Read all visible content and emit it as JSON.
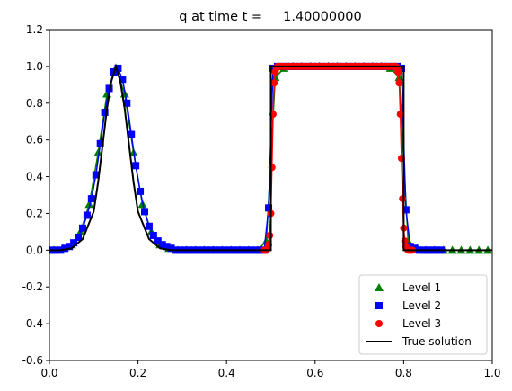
{
  "chart_data": {
    "type": "line",
    "title": "q at time t =     1.40000000",
    "xlabel": "",
    "ylabel": "",
    "xlim": [
      0,
      1.0
    ],
    "ylim": [
      -0.6,
      1.2
    ],
    "xticks": [
      "0.0",
      "0.2",
      "0.4",
      "0.6",
      "0.8",
      "1.0"
    ],
    "yticks": [
      "-0.6",
      "-0.4",
      "-0.2",
      "0.0",
      "0.2",
      "0.4",
      "0.6",
      "0.8",
      "1.0",
      "1.2"
    ],
    "grid": false,
    "legend_position": "lower-right",
    "series": [
      {
        "name": "Level 1",
        "marker": "triangle",
        "color": "#008000",
        "x": [
          0.01,
          0.03,
          0.05,
          0.07,
          0.09,
          0.11,
          0.13,
          0.15,
          0.17,
          0.19,
          0.21,
          0.23,
          0.25,
          0.27,
          0.29,
          0.31,
          0.33,
          0.35,
          0.37,
          0.39,
          0.41,
          0.43,
          0.45,
          0.47,
          0.49,
          0.51,
          0.53,
          0.55,
          0.57,
          0.59,
          0.61,
          0.63,
          0.65,
          0.67,
          0.69,
          0.71,
          0.73,
          0.75,
          0.77,
          0.79,
          0.81,
          0.83,
          0.85,
          0.87,
          0.89,
          0.91,
          0.93,
          0.95,
          0.97,
          0.99
        ],
        "y": [
          0.0,
          0.01,
          0.03,
          0.1,
          0.25,
          0.53,
          0.85,
          0.99,
          0.85,
          0.53,
          0.25,
          0.1,
          0.03,
          0.01,
          0.0,
          0.0,
          0.0,
          0.0,
          0.0,
          0.0,
          0.0,
          0.0,
          0.0,
          0.0,
          0.05,
          0.94,
          0.99,
          1.0,
          1.0,
          1.0,
          1.0,
          1.0,
          1.0,
          1.0,
          1.0,
          1.0,
          1.0,
          1.0,
          0.99,
          0.94,
          0.05,
          0.01,
          0.0,
          0.0,
          0.0,
          0.0,
          0.0,
          0.0,
          0.0,
          0.0
        ]
      },
      {
        "name": "Level 2",
        "marker": "square",
        "color": "#0000ff",
        "x": [
          0.005,
          0.015,
          0.025,
          0.035,
          0.045,
          0.055,
          0.065,
          0.075,
          0.085,
          0.095,
          0.105,
          0.115,
          0.125,
          0.135,
          0.145,
          0.155,
          0.165,
          0.175,
          0.185,
          0.195,
          0.205,
          0.215,
          0.225,
          0.235,
          0.245,
          0.255,
          0.265,
          0.275,
          0.285,
          0.295,
          0.305,
          0.315,
          0.325,
          0.335,
          0.345,
          0.355,
          0.365,
          0.375,
          0.385,
          0.395,
          0.405,
          0.415,
          0.425,
          0.435,
          0.445,
          0.455,
          0.465,
          0.475,
          0.485,
          0.495,
          0.505,
          0.515,
          0.525,
          0.535,
          0.545,
          0.555,
          0.565,
          0.575,
          0.585,
          0.595,
          0.605,
          0.615,
          0.625,
          0.635,
          0.645,
          0.655,
          0.665,
          0.675,
          0.685,
          0.695,
          0.705,
          0.715,
          0.725,
          0.735,
          0.745,
          0.755,
          0.765,
          0.775,
          0.785,
          0.795,
          0.805,
          0.815,
          0.825,
          0.835,
          0.845,
          0.855,
          0.865,
          0.875,
          0.885
        ],
        "y": [
          0.0,
          0.0,
          0.0,
          0.01,
          0.02,
          0.04,
          0.07,
          0.12,
          0.19,
          0.28,
          0.41,
          0.58,
          0.75,
          0.88,
          0.97,
          0.99,
          0.93,
          0.8,
          0.63,
          0.46,
          0.32,
          0.21,
          0.13,
          0.08,
          0.05,
          0.03,
          0.02,
          0.01,
          0.0,
          0.0,
          0.0,
          0.0,
          0.0,
          0.0,
          0.0,
          0.0,
          0.0,
          0.0,
          0.0,
          0.0,
          0.0,
          0.0,
          0.0,
          0.0,
          0.0,
          0.0,
          0.0,
          0.0,
          0.0,
          0.23,
          0.99,
          1.0,
          1.0,
          1.0,
          1.0,
          1.0,
          1.0,
          1.0,
          1.0,
          1.0,
          1.0,
          1.0,
          1.0,
          1.0,
          1.0,
          1.0,
          1.0,
          1.0,
          1.0,
          1.0,
          1.0,
          1.0,
          1.0,
          1.0,
          1.0,
          1.0,
          1.0,
          1.0,
          1.0,
          0.99,
          0.22,
          0.02,
          0.01,
          0.0,
          0.0,
          0.0,
          0.0,
          0.0,
          0.0
        ]
      },
      {
        "name": "Level 3",
        "marker": "circle",
        "color": "#ff0000",
        "x": [
          0.485,
          0.4875,
          0.49,
          0.4925,
          0.495,
          0.4975,
          0.5,
          0.5025,
          0.505,
          0.5075,
          0.51,
          0.5125,
          0.515,
          0.5175,
          0.52,
          0.525,
          0.53,
          0.535,
          0.54,
          0.545,
          0.55,
          0.555,
          0.56,
          0.565,
          0.57,
          0.575,
          0.58,
          0.585,
          0.59,
          0.595,
          0.6,
          0.605,
          0.61,
          0.615,
          0.62,
          0.625,
          0.63,
          0.635,
          0.64,
          0.645,
          0.65,
          0.655,
          0.66,
          0.665,
          0.67,
          0.675,
          0.68,
          0.685,
          0.69,
          0.695,
          0.7,
          0.705,
          0.71,
          0.715,
          0.72,
          0.725,
          0.73,
          0.735,
          0.74,
          0.745,
          0.75,
          0.755,
          0.76,
          0.765,
          0.77,
          0.775,
          0.78,
          0.7825,
          0.785,
          0.7875,
          0.79,
          0.7925,
          0.795,
          0.7975,
          0.8,
          0.8025,
          0.805,
          0.8075,
          0.81,
          0.8125,
          0.815,
          0.8175,
          0.82
        ],
        "y": [
          0.0,
          0.0,
          0.0,
          0.01,
          0.03,
          0.08,
          0.2,
          0.45,
          0.74,
          0.91,
          0.97,
          0.99,
          1.0,
          1.0,
          1.0,
          1.0,
          1.0,
          1.0,
          1.0,
          1.0,
          1.0,
          1.0,
          1.0,
          1.0,
          1.0,
          1.0,
          1.0,
          1.0,
          1.0,
          1.0,
          1.0,
          1.0,
          1.0,
          1.0,
          1.0,
          1.0,
          1.0,
          1.0,
          1.0,
          1.0,
          1.0,
          1.0,
          1.0,
          1.0,
          1.0,
          1.0,
          1.0,
          1.0,
          1.0,
          1.0,
          1.0,
          1.0,
          1.0,
          1.0,
          1.0,
          1.0,
          1.0,
          1.0,
          1.0,
          1.0,
          1.0,
          1.0,
          1.0,
          1.0,
          1.0,
          1.0,
          1.0,
          1.0,
          0.99,
          0.97,
          0.91,
          0.74,
          0.5,
          0.28,
          0.12,
          0.05,
          0.02,
          0.01,
          0.0,
          0.0,
          0.0,
          0.0,
          0.0
        ]
      },
      {
        "name": "True solution",
        "marker": "line",
        "color": "#000000",
        "x": [
          0.0,
          0.025,
          0.05,
          0.075,
          0.1,
          0.11,
          0.12,
          0.13,
          0.14,
          0.15,
          0.16,
          0.17,
          0.18,
          0.19,
          0.2,
          0.225,
          0.25,
          0.275,
          0.3,
          0.5,
          0.5,
          0.8,
          0.8,
          1.0
        ],
        "y": [
          0.0,
          0.0,
          0.01,
          0.06,
          0.21,
          0.37,
          0.57,
          0.77,
          0.92,
          1.0,
          0.92,
          0.77,
          0.57,
          0.37,
          0.21,
          0.06,
          0.01,
          0.0,
          0.0,
          0.0,
          1.0,
          1.0,
          0.0,
          0.0
        ]
      }
    ]
  }
}
